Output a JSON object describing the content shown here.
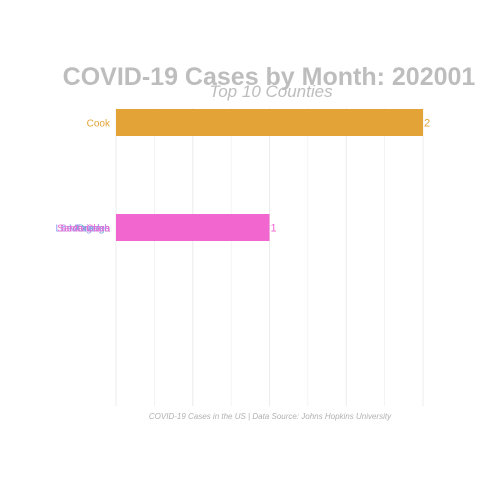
{
  "chart_data": {
    "type": "bar",
    "orientation": "horizontal",
    "title": "COVID-19 Cases by Month: 202001",
    "subtitle": "Top 10 Counties",
    "caption": "COVID-19 Cases in the US | Data Source: Johns Hopkins University",
    "xlabel": "",
    "ylabel": "",
    "xlim": [
      0,
      2
    ],
    "grid": true,
    "legend": "none",
    "bars": [
      {
        "label": "Cook",
        "value": 2,
        "value_label": "2",
        "color": "#e3a336"
      },
      {
        "label": "Los Angeles",
        "value": 1,
        "value_label": "1",
        "color": "#f266d0",
        "overlapping_labels": [
          {
            "label": "Los Angeles",
            "color": "#8b9df2"
          },
          {
            "label": "Orange",
            "color": "#5ab4c9"
          },
          {
            "label": "Maricopa",
            "color": "#a3a3f0"
          },
          {
            "label": "Snohomish",
            "color": "#c08be8"
          },
          {
            "label": "Santa Clara",
            "color": "#f266d0"
          }
        ]
      }
    ]
  }
}
